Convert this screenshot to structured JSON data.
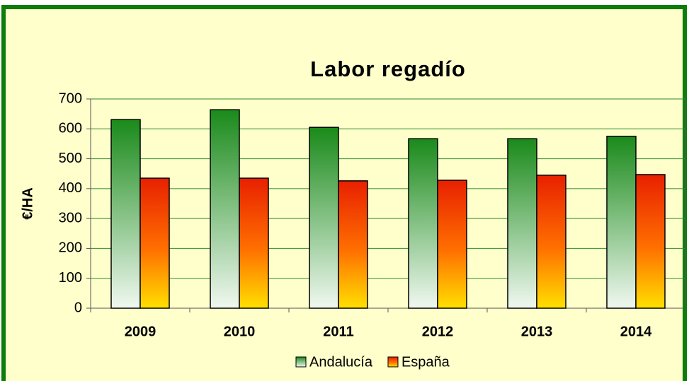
{
  "chart_data": {
    "type": "bar",
    "title": "Labor regadío",
    "y_label": "€/HA",
    "categories": [
      "2009",
      "2010",
      "2011",
      "2012",
      "2013",
      "2014"
    ],
    "series": [
      {
        "name": "Andalucía",
        "color": "#1a8a1a",
        "values": [
          631,
          664,
          605,
          567,
          567,
          575
        ]
      },
      {
        "name": "España",
        "color": "#e82000",
        "values": [
          435,
          435,
          426,
          428,
          445,
          447
        ]
      }
    ],
    "ylim": [
      0,
      700
    ],
    "yticks": [
      0,
      100,
      200,
      300,
      400,
      500,
      600,
      700
    ],
    "grid": true,
    "legend": "bottom"
  }
}
